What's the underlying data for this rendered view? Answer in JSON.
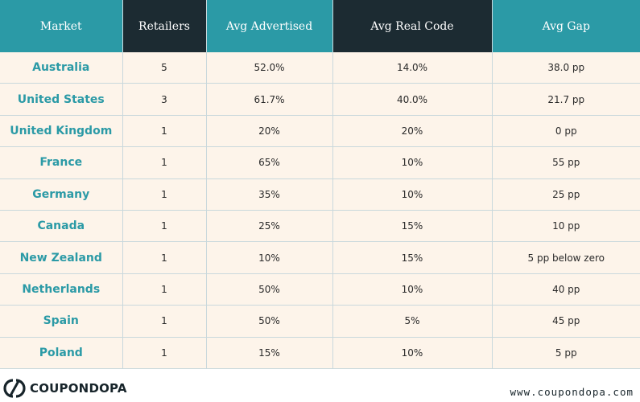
{
  "table": {
    "headers": [
      "Market",
      "Retailers",
      "Avg Advertised",
      "Avg Real Code",
      "Avg Gap"
    ],
    "rows": [
      [
        "Australia",
        "5",
        "52.0%",
        "14.0%",
        "38.0 pp"
      ],
      [
        "United States",
        "3",
        "61.7%",
        "40.0%",
        "21.7 pp"
      ],
      [
        "United Kingdom",
        "1",
        "20%",
        "20%",
        "0 pp"
      ],
      [
        "France",
        "1",
        "65%",
        "10%",
        "55 pp"
      ],
      [
        "Germany",
        "1",
        "35%",
        "10%",
        "25 pp"
      ],
      [
        "Canada",
        "1",
        "25%",
        "15%",
        "10 pp"
      ],
      [
        "New Zealand",
        "1",
        "10%",
        "15%",
        "5 pp below zero"
      ],
      [
        "Netherlands",
        "1",
        "50%",
        "10%",
        "40 pp"
      ],
      [
        "Spain",
        "1",
        "50%",
        "5%",
        "45 pp"
      ],
      [
        "Poland",
        "1",
        "15%",
        "10%",
        "5 pp"
      ]
    ]
  },
  "footer": {
    "logo_text": "COUPONDOPA",
    "website": "www.coupondopa.com"
  },
  "colors": {
    "teal": "#2b9aa6",
    "dark": "#1c2b32",
    "row_background": "#fdf4ea"
  }
}
